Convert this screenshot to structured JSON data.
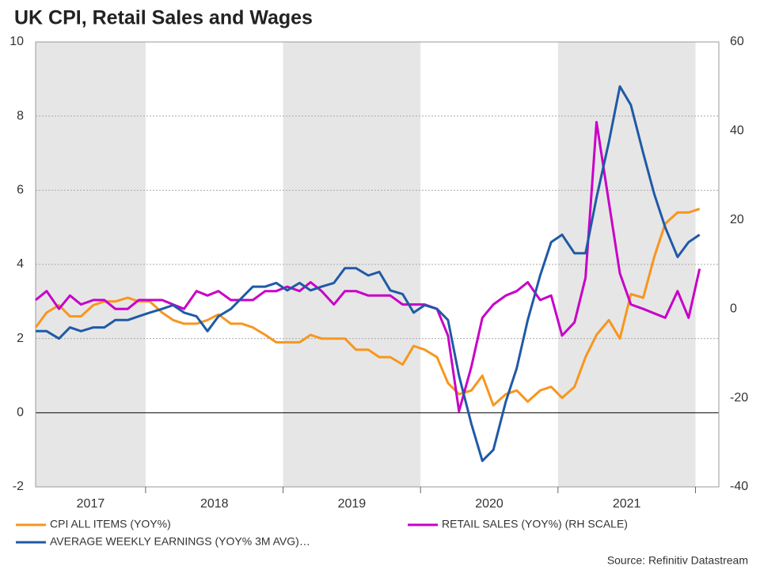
{
  "chart_data": {
    "type": "line",
    "title": "UK CPI, Retail Sales and Wages",
    "source": "Source: Refinitiv Datastream",
    "x": [
      2017.2,
      2017.28,
      2017.37,
      2017.45,
      2017.53,
      2017.62,
      2017.7,
      2017.78,
      2017.87,
      2017.95,
      2018.03,
      2018.12,
      2018.2,
      2018.28,
      2018.37,
      2018.45,
      2018.53,
      2018.62,
      2018.7,
      2018.78,
      2018.87,
      2018.95,
      2019.03,
      2019.12,
      2019.2,
      2019.28,
      2019.37,
      2019.45,
      2019.53,
      2019.62,
      2019.7,
      2019.78,
      2019.87,
      2019.95,
      2020.03,
      2020.12,
      2020.2,
      2020.28,
      2020.37,
      2020.45,
      2020.53,
      2020.62,
      2020.7,
      2020.78,
      2020.87,
      2020.95,
      2021.03,
      2021.12,
      2021.2,
      2021.28,
      2021.37,
      2021.45,
      2021.53,
      2021.62,
      2021.7,
      2021.78,
      2021.87,
      2021.95,
      2022.03
    ],
    "series": [
      {
        "name": "CPI ALL ITEMS (YOY%)",
        "color": "#f7961e",
        "values": [
          2.3,
          2.7,
          2.9,
          2.6,
          2.6,
          2.9,
          3.0,
          3.0,
          3.1,
          3.0,
          3.0,
          2.7,
          2.5,
          2.4,
          2.4,
          2.5,
          2.65,
          2.4,
          2.4,
          2.3,
          2.1,
          1.9,
          1.9,
          1.9,
          2.1,
          2.0,
          2.0,
          2.0,
          1.7,
          1.7,
          1.5,
          1.5,
          1.3,
          1.8,
          1.7,
          1.5,
          0.8,
          0.5,
          0.6,
          1.0,
          0.2,
          0.5,
          0.6,
          0.3,
          0.6,
          0.7,
          0.4,
          0.7,
          1.5,
          2.1,
          2.5,
          2.0,
          3.2,
          3.1,
          4.2,
          5.1,
          5.4,
          5.4,
          5.5
        ]
      },
      {
        "name": "RETAIL SALES (YOY%) (RH SCALE)",
        "color": "#c800c8",
        "axis": "y2",
        "values": [
          2,
          4,
          0,
          3,
          1,
          2,
          2,
          0,
          0,
          2,
          2,
          2,
          1,
          0,
          4,
          3,
          4,
          2,
          2,
          2,
          4,
          4,
          5,
          4,
          6,
          4,
          1,
          4,
          4,
          3,
          3,
          3,
          1,
          1,
          1,
          0,
          -6,
          -23,
          -13,
          -2,
          1,
          3,
          4,
          6,
          2,
          3,
          -6,
          -3,
          7,
          42,
          24,
          8,
          1,
          0,
          -1,
          -2,
          4,
          -2,
          9
        ]
      },
      {
        "name": "AVERAGE WEEKLY EARNINGS (YOY% 3M AVG)…",
        "color": "#1f5aa6",
        "values": [
          2.2,
          2.2,
          2.0,
          2.3,
          2.2,
          2.3,
          2.3,
          2.5,
          2.5,
          2.6,
          2.7,
          2.8,
          2.9,
          2.7,
          2.6,
          2.2,
          2.6,
          2.8,
          3.1,
          3.4,
          3.4,
          3.5,
          3.3,
          3.5,
          3.3,
          3.4,
          3.5,
          3.9,
          3.9,
          3.7,
          3.8,
          3.3,
          3.2,
          2.7,
          2.9,
          2.8,
          2.5,
          1.0,
          -0.3,
          -1.3,
          -1.0,
          0.3,
          1.2,
          2.5,
          3.7,
          4.6,
          4.8,
          4.3,
          4.3,
          5.8,
          7.3,
          8.8,
          8.3,
          7.0,
          5.9,
          5.0,
          4.2,
          4.6,
          4.8
        ]
      }
    ],
    "xlim": [
      2017.2,
      2022.17
    ],
    "xticks": [
      {
        "value": 2017.6,
        "label": "2017"
      },
      {
        "value": 2018.5,
        "label": "2018"
      },
      {
        "value": 2019.5,
        "label": "2019"
      },
      {
        "value": 2020.5,
        "label": "2020"
      },
      {
        "value": 2021.5,
        "label": "2021"
      }
    ],
    "xtick_marks": [
      2018,
      2019,
      2020,
      2021,
      2022
    ],
    "bands": [
      [
        2017,
        2018
      ],
      [
        2019,
        2020
      ],
      [
        2021,
        2022
      ]
    ],
    "ylim": [
      -2,
      10
    ],
    "yticks": [
      -2,
      0,
      2,
      4,
      6,
      8,
      10
    ],
    "y2lim": [
      -40,
      60
    ],
    "y2ticks": [
      -40,
      -20,
      0,
      20,
      40,
      60
    ],
    "grid": true
  }
}
